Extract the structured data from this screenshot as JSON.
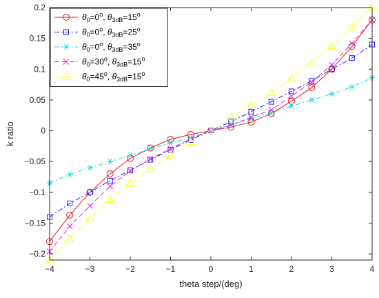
{
  "chart_data": {
    "type": "line",
    "xlabel": "theta step/(deg)",
    "ylabel": "k ratio",
    "xlim": [
      -4,
      4
    ],
    "ylim": [
      -0.21,
      0.2
    ],
    "xticks": [
      -4,
      -3,
      -2,
      -1,
      0,
      1,
      2,
      3,
      4
    ],
    "yticks": [
      -0.2,
      -0.15,
      -0.1,
      -0.05,
      0,
      0.05,
      0.1,
      0.15,
      0.2
    ],
    "xtick_labels": [
      "−4",
      "−3",
      "−2",
      "−1",
      "0",
      "1",
      "2",
      "3",
      "4"
    ],
    "ytick_labels": [
      "−0.2",
      "−0.15",
      "−0.1",
      "−0.05",
      "0",
      "0.05",
      "0.1",
      "0.15",
      "0.2"
    ],
    "grid": false,
    "legend_position": "top-left",
    "x": [
      -4,
      -3.5,
      -3,
      -2.5,
      -2,
      -1.5,
      -1,
      -0.5,
      0,
      0.5,
      1,
      1.5,
      2,
      2.5,
      3,
      3.5,
      4
    ],
    "series": [
      {
        "legend": {
          "theta0": "0",
          "theta3dB": "15"
        },
        "color": "#e8191b",
        "dash": "solid",
        "marker": "circle",
        "values": [
          -0.18,
          -0.137,
          -0.1,
          -0.07,
          -0.045,
          -0.028,
          -0.014,
          -0.006,
          0,
          0.006,
          0.014,
          0.028,
          0.048,
          0.07,
          0.1,
          0.137,
          0.18
        ]
      },
      {
        "legend": {
          "theta0": "0",
          "theta3dB": "25"
        },
        "color": "#1a1aff",
        "dash": "dashdot",
        "marker": "square",
        "values": [
          -0.14,
          -0.118,
          -0.1,
          -0.081,
          -0.064,
          -0.047,
          -0.031,
          -0.015,
          0,
          0.015,
          0.031,
          0.047,
          0.064,
          0.081,
          0.1,
          0.118,
          0.14
        ]
      },
      {
        "legend": {
          "theta0": "0",
          "theta3dB": "35"
        },
        "color": "#1fd8d8",
        "dash": "dashdot",
        "marker": "asterisk",
        "values": [
          -0.085,
          -0.071,
          -0.06,
          -0.05,
          -0.04,
          -0.029,
          -0.02,
          -0.011,
          0,
          0.01,
          0.02,
          0.029,
          0.04,
          0.05,
          0.06,
          0.071,
          0.086
        ]
      },
      {
        "legend": {
          "theta0": "30",
          "theta3dB": "15"
        },
        "color": "#e020e0",
        "dash": "dashed",
        "marker": "x",
        "values": [
          -0.196,
          -0.155,
          -0.122,
          -0.09,
          -0.065,
          -0.046,
          -0.029,
          -0.013,
          0,
          0.009,
          0.022,
          0.034,
          0.056,
          0.079,
          0.107,
          0.142,
          0.18
        ]
      },
      {
        "legend": {
          "theta0": "45",
          "theta3dB": "15"
        },
        "color": "#ffff1a",
        "dash": "dashdot",
        "marker": "triangle",
        "values": [
          -0.21,
          -0.175,
          -0.143,
          -0.112,
          -0.086,
          -0.062,
          -0.04,
          -0.018,
          0,
          0.022,
          0.042,
          0.062,
          0.085,
          0.11,
          0.138,
          0.168,
          0.2
        ]
      }
    ],
    "legend_symbols": {
      "theta": "θ",
      "sub0": "0",
      "sub3dB": "3dB",
      "degree": "o",
      "eq": "=",
      "sep": ", "
    }
  }
}
